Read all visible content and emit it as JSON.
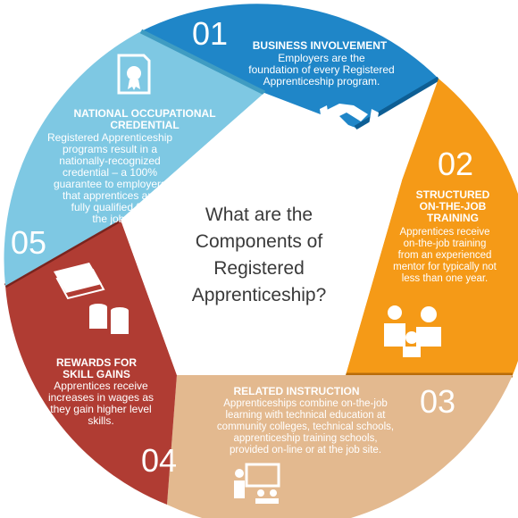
{
  "center": {
    "line1": "What are the",
    "line2": "Components of",
    "line3": "Registered",
    "line4": "Apprenticeship?"
  },
  "segments": [
    {
      "number": "01",
      "title": "BUSINESS INVOLVEMENT",
      "text_lines": [
        "Employers are the",
        "foundation of every Registered",
        "Apprenticeship program."
      ],
      "color": "#1f86c8",
      "icon": "handshake-icon"
    },
    {
      "number": "02",
      "title_lines": [
        "STRUCTURED",
        "ON-THE-JOB",
        "TRAINING"
      ],
      "text_lines": [
        "Apprentices receive",
        "on-the-job training",
        "from an experienced",
        "mentor for typically not",
        "less than one year."
      ],
      "color": "#f59a17",
      "icon": "mentor-people-icon"
    },
    {
      "number": "03",
      "title": "RELATED INSTRUCTION",
      "text_lines": [
        "Apprenticeships combine on-the-job",
        "learning with technical education at",
        "community colleges, technical schools,",
        "apprenticeship training schools,",
        "provided on-line or at the job site."
      ],
      "color": "#e3b98f",
      "icon": "classroom-teacher-icon"
    },
    {
      "number": "04",
      "title_lines": [
        "REWARDS FOR",
        "SKILL GAINS"
      ],
      "text_lines": [
        "Apprentices receive",
        "increases in wages as",
        "they gain higher level",
        "skills."
      ],
      "color": "#b03c33",
      "icon": "money-stack-icon"
    },
    {
      "number": "05",
      "title_lines": [
        "NATIONAL OCCUPATIONAL",
        "CREDENTIAL"
      ],
      "text_lines": [
        "Registered Apprenticeship",
        "programs result in a",
        "nationally-recognized",
        "credential – a 100%",
        "guarantee to employers",
        "that apprentices are",
        "fully qualified for",
        "the job."
      ],
      "color": "#7ec8e3",
      "icon": "certificate-icon"
    }
  ]
}
